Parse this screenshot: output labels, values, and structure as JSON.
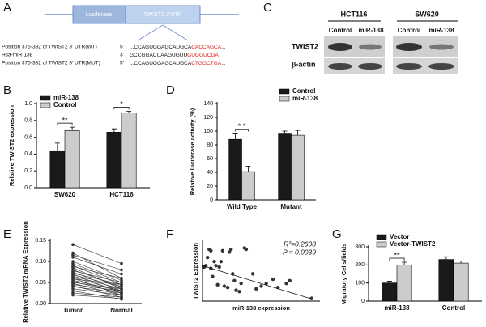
{
  "diagram": {
    "panel": "A",
    "boxes": [
      "Luciferase",
      "TWIST2 3'UTR"
    ],
    "rows": [
      {
        "name": "Position 375-382 of TWIST2 3' UTR(WT)",
        "end": "5'",
        "seq": "...CCAGUGGAGCAUGCA",
        "site": "CACCAGCA",
        "tail": "..."
      },
      {
        "name": "Hsa-miR-138",
        "end": "3'",
        "seq": "GCCGGACUAAGUGUU",
        "site": "GUGGUCGA",
        "tail": ""
      },
      {
        "name": "Position 375-382 of TWIST2 3' UTR(MUT)",
        "end": "5'",
        "seq": "...CCAGUGGAGCAUGCA",
        "site": "CTGGCTGA",
        "tail": "..."
      }
    ]
  },
  "blot": {
    "panel": "C",
    "cell_lines": [
      "HCT116",
      "SW620"
    ],
    "lanes": [
      "Control",
      "miR-138",
      "Control",
      "miR-138"
    ],
    "proteins": [
      "TWIST2",
      "β-actin"
    ]
  },
  "chart_data": [
    {
      "type": "bar",
      "panel": "B",
      "ylabel": "Relative TWIST2 expression",
      "categories": [
        "SW620",
        "HCT116"
      ],
      "series": [
        {
          "name": "miR-138",
          "color": "#1a1a1a",
          "values": [
            0.44,
            0.66
          ],
          "errors": [
            0.09,
            0.04
          ]
        },
        {
          "name": "Control",
          "color": "#cccccc",
          "values": [
            0.68,
            0.89
          ],
          "errors": [
            0.04,
            0.02
          ]
        }
      ],
      "significance": [
        "**",
        "*"
      ],
      "ylim": [
        0,
        1
      ],
      "yticks": [
        {
          "value": 0,
          "label": "0.0"
        },
        0.2,
        0.4,
        0.6,
        0.8,
        {
          "value": 1,
          "label": "1.0"
        }
      ],
      "legend": "upper left"
    },
    {
      "type": "bar",
      "panel": "D",
      "ylabel": "Relative luciferase activity (%)",
      "categories": [
        "Wild Type",
        "Mutant"
      ],
      "series": [
        {
          "name": "Control",
          "color": "#1a1a1a",
          "values": [
            88,
            97
          ],
          "errors": [
            9,
            3
          ]
        },
        {
          "name": "miR-138",
          "color": "#cccccc",
          "values": [
            41,
            94
          ],
          "errors": [
            8,
            7
          ]
        }
      ],
      "significance": [
        "* *",
        null
      ],
      "ylim": [
        0,
        140
      ],
      "yticks": [
        0,
        20,
        40,
        60,
        80,
        100,
        120,
        140
      ],
      "legend": "upper right"
    },
    {
      "type": "paired",
      "panel": "E",
      "ylabel": "Relative TWIST2 mRNA Expression",
      "color": "#333333",
      "series": [
        {
          "name": "Tumor",
          "values": [
            0.14,
            0.12,
            0.115,
            0.11,
            0.1,
            0.095,
            0.09,
            0.088,
            0.085,
            0.08,
            0.078,
            0.075,
            0.072,
            0.07,
            0.068,
            0.065,
            0.062,
            0.06,
            0.058,
            0.055,
            0.052,
            0.05,
            0.048,
            0.045,
            0.042,
            0.04,
            0.035,
            0.03,
            0.025,
            0.02
          ]
        },
        {
          "name": "Normal",
          "values": [
            0.095,
            0.06,
            0.08,
            0.07,
            0.055,
            0.05,
            0.045,
            0.06,
            0.035,
            0.04,
            0.05,
            0.03,
            0.045,
            0.025,
            0.04,
            0.035,
            0.03,
            0.02,
            0.045,
            0.03,
            0.025,
            0.035,
            0.02,
            0.03,
            0.015,
            0.025,
            0.02,
            0.01,
            0.015,
            0.012
          ]
        }
      ],
      "ylim": [
        0,
        0.15
      ],
      "yticks": [
        {
          "value": 0,
          "label": "0.00"
        },
        {
          "value": 0.05,
          "label": "0.05"
        },
        {
          "value": 0.1,
          "label": "0.10"
        },
        {
          "value": 0.15,
          "label": "0.15"
        }
      ]
    },
    {
      "type": "scatter",
      "panel": "F",
      "xlabel": "miR-138 expression",
      "ylabel": "TWIST2 Expression",
      "color": "#333333",
      "x": [
        0.1,
        0.2,
        0.3,
        0.4,
        0.5,
        0.5,
        0.6,
        0.7,
        0.8,
        0.9,
        1.0,
        1.1,
        1.2,
        1.3,
        1.5,
        1.6,
        1.7,
        1.8,
        1.9,
        2.0,
        2.2,
        2.3,
        2.5,
        2.6,
        3.0,
        3.2,
        3.5,
        3.8,
        4.2,
        4.5,
        5.0,
        5.2,
        6.5
      ],
      "values": [
        1.25,
        1.3,
        1.6,
        1.9,
        1.85,
        1.2,
        0.9,
        1.45,
        1.3,
        0.6,
        1.25,
        1.45,
        1.85,
        0.55,
        0.5,
        1.8,
        1.9,
        1.0,
        0.75,
        0.4,
        0.35,
        0.65,
        1.95,
        1.9,
        1.0,
        0.45,
        0.55,
        0.65,
        0.8,
        0.5,
        0.65,
        0.75,
        0.1
      ],
      "fit": {
        "x": [
          0,
          6.5
        ],
        "values": [
          1.3,
          0.08
        ]
      },
      "annotations": [
        "R²=0.2608",
        "P = 0.0039"
      ],
      "xlim": [
        0,
        7
      ],
      "ylim": [
        0,
        2.2
      ]
    },
    {
      "type": "bar",
      "panel": "G",
      "ylabel": "Migratory Cells/fields",
      "categories": [
        "miR-138",
        "Control"
      ],
      "series": [
        {
          "name": "Vector",
          "color": "#1a1a1a",
          "values": [
            100,
            230
          ],
          "errors": [
            10,
            15
          ]
        },
        {
          "name": "Vector-TWIST2",
          "color": "#cccccc",
          "values": [
            200,
            210
          ],
          "errors": [
            15,
            12
          ]
        }
      ],
      "significance": [
        "**",
        null
      ],
      "ylim": [
        0,
        300
      ],
      "yticks": [
        0,
        100,
        200,
        300
      ],
      "legend": "upper left"
    }
  ]
}
